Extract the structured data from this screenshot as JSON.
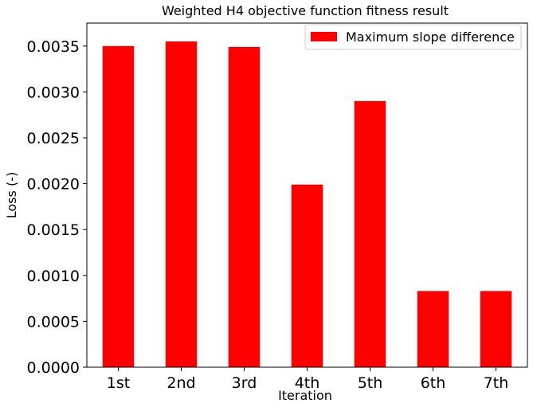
{
  "chart_data": {
    "type": "bar",
    "title": "Weighted H4 objective function fitness result",
    "xlabel": "Iteration",
    "ylabel": "Loss (-)",
    "categories": [
      "1st",
      "2nd",
      "3rd",
      "4th",
      "5th",
      "6th",
      "7th"
    ],
    "series": [
      {
        "name": "Maximum slope difference",
        "color": "#ff0000",
        "values": [
          0.0035,
          0.00355,
          0.00349,
          0.00199,
          0.0029,
          0.00083,
          0.00083
        ]
      }
    ],
    "ylim": [
      0,
      0.00375
    ],
    "yticks": [
      0.0,
      0.0005,
      0.001,
      0.0015,
      0.002,
      0.0025,
      0.003,
      0.0035
    ],
    "ytick_labels": [
      "0.0000",
      "0.0005",
      "0.0010",
      "0.0015",
      "0.0020",
      "0.0025",
      "0.0030",
      "0.0035"
    ],
    "grid": false,
    "legend_position": "top-right"
  }
}
